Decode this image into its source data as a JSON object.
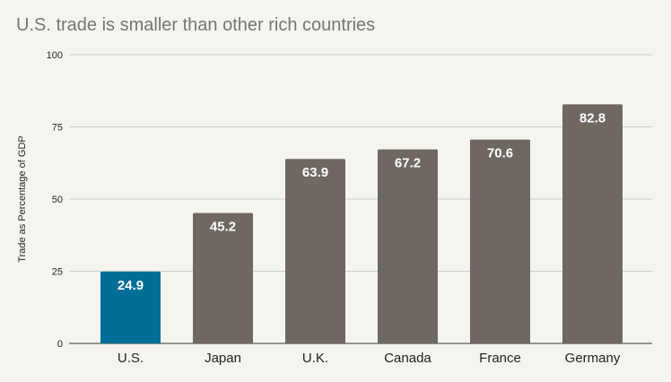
{
  "chart_data": {
    "type": "bar",
    "title": "U.S. trade is smaller than other rich countries",
    "xlabel": "",
    "ylabel": "Trade as Percentage of GDP",
    "categories": [
      "U.S.",
      "Japan",
      "U.K.",
      "Canada",
      "France",
      "Germany"
    ],
    "values": [
      24.9,
      45.2,
      63.9,
      67.2,
      70.6,
      82.8
    ],
    "data_labels": [
      "24.9",
      "45.2",
      "63.9",
      "67.2",
      "70.6",
      "82.8"
    ],
    "ylim": [
      0,
      100
    ],
    "yticks": [
      0,
      25,
      50,
      75,
      100
    ],
    "ytick_labels": [
      "0",
      "25",
      "50",
      "75",
      "100"
    ],
    "grid": true,
    "legend": "none",
    "colors": {
      "highlight": "#006e96",
      "default": "#6e6861",
      "gridline": "#cccccc",
      "baseline": "#333333"
    },
    "highlight_index": 0
  }
}
